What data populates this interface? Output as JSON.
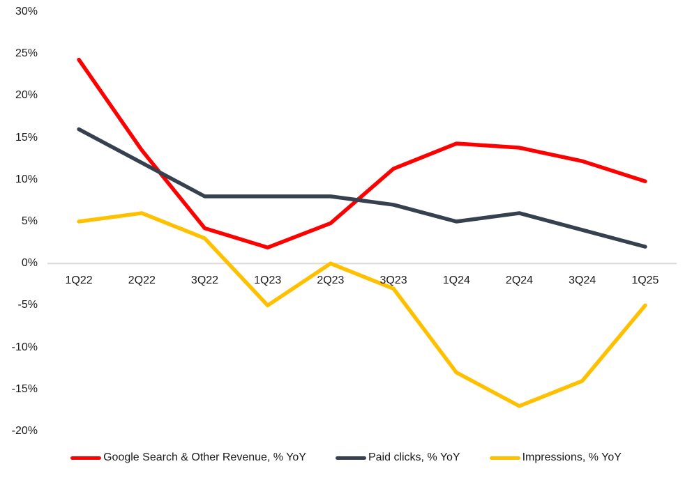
{
  "page": {
    "background_color": "#ffffff",
    "text_color": "#1a1a1a"
  },
  "chart_data": {
    "type": "line",
    "title": "",
    "categories": [
      "1Q22",
      "2Q22",
      "3Q22",
      "1Q23",
      "2Q23",
      "3Q23",
      "1Q24",
      "2Q24",
      "3Q24",
      "1Q25"
    ],
    "series": [
      {
        "name": "Google Search & Other Revenue, % YoY",
        "color": "#FF0000",
        "values": [
          24.3,
          13.5,
          4.2,
          1.9,
          4.8,
          11.3,
          14.3,
          13.8,
          12.2,
          9.8
        ]
      },
      {
        "name": "Paid clicks, % YoY",
        "color": "#36404F",
        "values": [
          16,
          12,
          8,
          8,
          8,
          7,
          5,
          6,
          4,
          2
        ]
      },
      {
        "name": "Impressions, % YoY",
        "color": "#FFC000",
        "values": [
          5,
          6,
          3,
          -5,
          0,
          -3,
          -13,
          -17,
          -14,
          -5
        ]
      }
    ],
    "y_axis": {
      "min": -20,
      "max": 30,
      "step": 5,
      "tick_labels": [
        "30%",
        "25%",
        "20%",
        "15%",
        "10%",
        "5%",
        "0%",
        "-5%",
        "-10%",
        "-15%",
        "-20%"
      ],
      "format": "percent"
    },
    "x_axis": {
      "tick_labels": [
        "1Q22",
        "2Q22",
        "3Q22",
        "1Q23",
        "2Q23",
        "3Q23",
        "1Q24",
        "2Q24",
        "3Q24",
        "1Q25"
      ]
    },
    "gridlines": "zero-line-only",
    "zero_line_color": "#D9D9D9",
    "legend_position": "bottom",
    "ylim": [
      -20,
      30
    ]
  }
}
